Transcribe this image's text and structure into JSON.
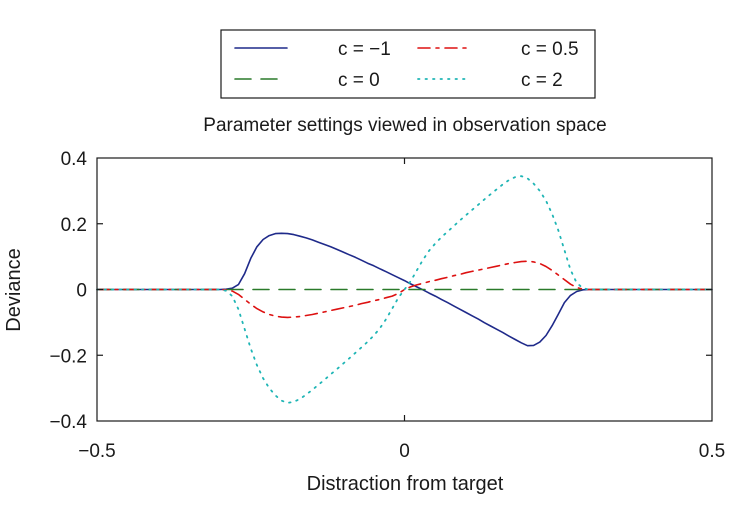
{
  "chart_data": {
    "type": "line",
    "title": "Parameter settings viewed in observation space",
    "xlabel": "Distraction from target",
    "ylabel": "Deviance",
    "xlim": [
      -0.5,
      0.5
    ],
    "ylim": [
      -0.4,
      0.4
    ],
    "xticks": [
      -0.5,
      0,
      0.5
    ],
    "xtick_labels": [
      "−0.5",
      "0",
      "0.5"
    ],
    "yticks": [
      -0.4,
      -0.2,
      0,
      0.2,
      0.4
    ],
    "ytick_labels": [
      "−0.4",
      "−0.2",
      "0",
      "0.2",
      "0.4"
    ],
    "grid": false,
    "legend_position": "top, above plot",
    "x": [
      -0.5,
      -0.3,
      -0.29,
      -0.28,
      -0.27,
      -0.26,
      -0.25,
      -0.24,
      -0.23,
      -0.22,
      -0.21,
      -0.2,
      -0.19,
      -0.18,
      -0.17,
      -0.16,
      -0.15,
      -0.14,
      -0.13,
      -0.12,
      -0.11,
      -0.1,
      -0.09,
      -0.08,
      -0.07,
      -0.06,
      -0.05,
      -0.04,
      -0.03,
      -0.02,
      -0.01,
      0,
      0.01,
      0.02,
      0.03,
      0.04,
      0.05,
      0.06,
      0.07,
      0.08,
      0.09,
      0.1,
      0.11,
      0.12,
      0.13,
      0.14,
      0.15,
      0.16,
      0.17,
      0.18,
      0.19,
      0.2,
      0.21,
      0.22,
      0.23,
      0.24,
      0.25,
      0.26,
      0.27,
      0.28,
      0.29,
      0.3,
      0.5
    ],
    "series": [
      {
        "name": "c = −1",
        "color": "#1f2a8a",
        "dash": "solid",
        "values": [
          0,
          0,
          0.001,
          0.004,
          0.015,
          0.048,
          0.095,
          0.13,
          0.152,
          0.164,
          0.17,
          0.171,
          0.17,
          0.167,
          0.162,
          0.157,
          0.151,
          0.144,
          0.137,
          0.13,
          0.122,
          0.114,
          0.106,
          0.098,
          0.089,
          0.08,
          0.072,
          0.063,
          0.054,
          0.045,
          0.036,
          0.027,
          0.017,
          0.008,
          -0.001,
          -0.011,
          -0.02,
          -0.03,
          -0.04,
          -0.05,
          -0.06,
          -0.07,
          -0.08,
          -0.09,
          -0.101,
          -0.111,
          -0.121,
          -0.131,
          -0.142,
          -0.152,
          -0.162,
          -0.171,
          -0.17,
          -0.16,
          -0.14,
          -0.11,
          -0.075,
          -0.04,
          -0.018,
          -0.006,
          -0.001,
          0,
          0
        ]
      },
      {
        "name": "c = 0",
        "color": "#2a7a2a",
        "dash": "dashed",
        "values": [
          0,
          0,
          0,
          0,
          0,
          0,
          0,
          0,
          0,
          0,
          0,
          0,
          0,
          0,
          0,
          0,
          0,
          0,
          0,
          0,
          0,
          0,
          0,
          0,
          0,
          0,
          0,
          0,
          0,
          0,
          0,
          0,
          0,
          0,
          0,
          0,
          0,
          0,
          0,
          0,
          0,
          0,
          0,
          0,
          0,
          0,
          0,
          0,
          0,
          0,
          0,
          0,
          0,
          0,
          0,
          0,
          0,
          0,
          0,
          0,
          0,
          0,
          0
        ]
      },
      {
        "name": "c = 0.5",
        "color": "#dd1111",
        "dash": "dashdot",
        "values": [
          0,
          0,
          -0.001,
          -0.005,
          -0.015,
          -0.03,
          -0.045,
          -0.058,
          -0.068,
          -0.076,
          -0.081,
          -0.084,
          -0.085,
          -0.084,
          -0.082,
          -0.079,
          -0.076,
          -0.072,
          -0.068,
          -0.064,
          -0.06,
          -0.056,
          -0.052,
          -0.048,
          -0.043,
          -0.039,
          -0.034,
          -0.03,
          -0.025,
          -0.02,
          -0.012,
          0,
          0.008,
          0.014,
          0.019,
          0.024,
          0.028,
          0.033,
          0.037,
          0.042,
          0.046,
          0.051,
          0.055,
          0.059,
          0.063,
          0.067,
          0.071,
          0.075,
          0.079,
          0.082,
          0.085,
          0.086,
          0.084,
          0.079,
          0.07,
          0.058,
          0.044,
          0.03,
          0.016,
          0.006,
          0.001,
          0,
          0
        ]
      },
      {
        "name": "c = 2",
        "color": "#1fb5b5",
        "dash": "dotted",
        "values": [
          0,
          0,
          -0.004,
          -0.02,
          -0.06,
          -0.12,
          -0.18,
          -0.23,
          -0.27,
          -0.3,
          -0.322,
          -0.338,
          -0.345,
          -0.342,
          -0.333,
          -0.32,
          -0.305,
          -0.29,
          -0.274,
          -0.258,
          -0.242,
          -0.226,
          -0.21,
          -0.193,
          -0.176,
          -0.159,
          -0.14,
          -0.118,
          -0.09,
          -0.058,
          -0.025,
          0,
          0.025,
          0.058,
          0.09,
          0.118,
          0.14,
          0.159,
          0.176,
          0.193,
          0.21,
          0.226,
          0.242,
          0.258,
          0.274,
          0.29,
          0.305,
          0.32,
          0.333,
          0.342,
          0.345,
          0.338,
          0.322,
          0.3,
          0.27,
          0.23,
          0.18,
          0.12,
          0.06,
          0.02,
          0.004,
          0,
          0
        ]
      }
    ]
  }
}
